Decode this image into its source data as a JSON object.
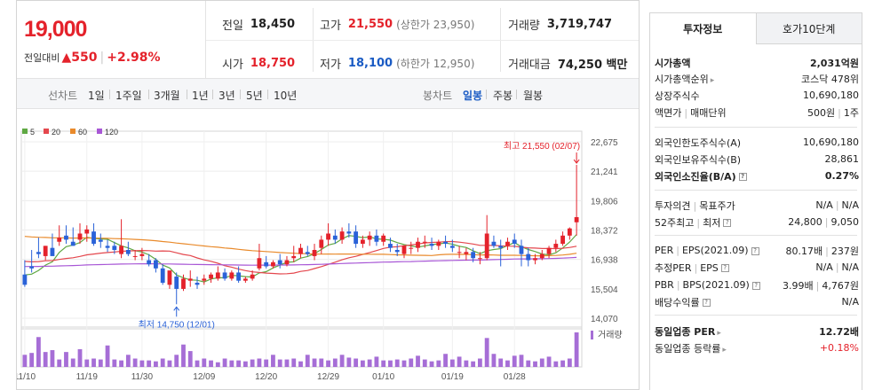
{
  "price": {
    "current": "19,000",
    "change_label": "전일대비",
    "change_arrow": "▲",
    "change": "550",
    "change_pct": "+2.98%"
  },
  "quote": {
    "prev_label": "전일",
    "prev": "18,450",
    "high_label": "고가",
    "high": "21,550",
    "upper_limit": "(상한가 23,950)",
    "volume_label": "거래량",
    "volume": "3,719,747",
    "open_label": "시가",
    "open": "18,750",
    "low_label": "저가",
    "low": "18,100",
    "lower_limit": "(하한가 12,950)",
    "amount_label": "거래대금",
    "amount": "74,250 백만"
  },
  "periods": {
    "line_label": "선차트",
    "items": [
      "1일",
      "1주일",
      "3개월",
      "1년",
      "3년",
      "5년",
      "10년"
    ]
  },
  "candles_tabs": {
    "label": "봉차트",
    "items": [
      "일봉",
      "주봉",
      "월봉"
    ],
    "active": "일봉"
  },
  "chart_data": {
    "type": "candlestick",
    "legend": [
      {
        "name": "5",
        "color": "#5fa843"
      },
      {
        "name": "20",
        "color": "#e4474d"
      },
      {
        "name": "60",
        "color": "#e98a2b"
      },
      {
        "name": "120",
        "color": "#a857d6"
      }
    ],
    "ylim": [
      14070,
      22675
    ],
    "y_ticks": [
      "22,675",
      "21,241",
      "19,806",
      "18,372",
      "16,938",
      "15,504",
      "14,070"
    ],
    "x_labels": [
      "11/10",
      "11/19",
      "11/30",
      "12/09",
      "12/20",
      "12/29",
      "01/10",
      "01/19",
      "01/28"
    ],
    "max_annotation": "최고 21,550 (02/07)",
    "min_annotation": "최저 14,750 (12/01)",
    "volume_label": "거래량",
    "ohlc": [
      [
        16200,
        16900,
        15700,
        15600
      ],
      [
        16600,
        17400,
        16500,
        16300
      ],
      [
        17300,
        18000,
        17200,
        17000
      ],
      [
        17100,
        17600,
        17600,
        16900
      ],
      [
        17500,
        18200,
        17100,
        17300
      ],
      [
        17800,
        18600,
        18000,
        17600
      ],
      [
        18100,
        18600,
        17900,
        17700
      ],
      [
        17800,
        18500,
        17600,
        17600
      ],
      [
        17900,
        18700,
        18200,
        17700
      ],
      [
        18200,
        18600,
        18400,
        17800
      ],
      [
        18300,
        18700,
        17700,
        17600
      ],
      [
        17900,
        18200,
        17800,
        17500
      ],
      [
        17600,
        17900,
        17500,
        17300
      ],
      [
        17600,
        17800,
        17400,
        17200
      ],
      [
        17200,
        18900,
        17600,
        17000
      ],
      [
        17400,
        17800,
        17200,
        17100
      ],
      [
        17100,
        17400,
        17100,
        16900
      ],
      [
        17100,
        17500,
        17200,
        16900
      ],
      [
        16900,
        17200,
        16700,
        16600
      ],
      [
        16900,
        17000,
        16500,
        16300
      ],
      [
        16500,
        16700,
        15800,
        15700
      ],
      [
        15700,
        16200,
        16400,
        15500
      ],
      [
        16100,
        16300,
        15500,
        14750
      ],
      [
        15500,
        16200,
        16000,
        15400
      ],
      [
        15900,
        16400,
        16000,
        15600
      ],
      [
        15800,
        16100,
        15700,
        15500
      ],
      [
        15900,
        16200,
        16000,
        15700
      ],
      [
        16000,
        16300,
        16200,
        15800
      ],
      [
        16000,
        16600,
        16300,
        15900
      ],
      [
        16300,
        16500,
        16000,
        15900
      ],
      [
        16000,
        16400,
        16300,
        15900
      ],
      [
        16300,
        16600,
        15900,
        15800
      ],
      [
        15900,
        16100,
        16000,
        15800
      ],
      [
        16000,
        16400,
        16200,
        15900
      ],
      [
        16500,
        17700,
        17000,
        16400
      ],
      [
        16800,
        17100,
        16600,
        16500
      ],
      [
        16600,
        16900,
        16800,
        16500
      ],
      [
        16900,
        17200,
        16700,
        16500
      ],
      [
        16700,
        17100,
        16900,
        16600
      ],
      [
        17000,
        17600,
        17100,
        16800
      ],
      [
        17200,
        17700,
        17500,
        17000
      ],
      [
        17300,
        17600,
        17200,
        17100
      ],
      [
        17100,
        17700,
        17400,
        16900
      ],
      [
        17500,
        18100,
        17900,
        17200
      ],
      [
        17900,
        18700,
        18200,
        17600
      ],
      [
        18100,
        18400,
        17900,
        17700
      ],
      [
        17900,
        18500,
        18300,
        17700
      ],
      [
        18300,
        18700,
        18200,
        18000
      ],
      [
        18300,
        18600,
        17700,
        17500
      ],
      [
        17700,
        18100,
        17900,
        17500
      ],
      [
        17900,
        18300,
        18100,
        17600
      ],
      [
        18100,
        18400,
        17800,
        17600
      ],
      [
        17800,
        18200,
        18100,
        17600
      ],
      [
        17700,
        18000,
        17500,
        17300
      ],
      [
        17400,
        17700,
        17300,
        17100
      ],
      [
        17200,
        17500,
        17600,
        17000
      ],
      [
        17500,
        17800,
        17500,
        17200
      ],
      [
        17500,
        18000,
        17800,
        17300
      ],
      [
        17800,
        18100,
        17800,
        17500
      ],
      [
        17700,
        18000,
        17600,
        17400
      ],
      [
        17600,
        17900,
        17800,
        17400
      ],
      [
        17800,
        18100,
        17700,
        17500
      ],
      [
        17600,
        17900,
        17500,
        17300
      ],
      [
        17300,
        17600,
        17300,
        17000
      ],
      [
        17200,
        17500,
        17300,
        16900
      ],
      [
        17300,
        17500,
        17000,
        16800
      ],
      [
        17000,
        17300,
        17000,
        16700
      ],
      [
        17000,
        19100,
        18200,
        16900
      ],
      [
        17800,
        18100,
        17600,
        17500
      ],
      [
        17600,
        17900,
        17500,
        16600
      ],
      [
        17600,
        18000,
        17800,
        17400
      ],
      [
        17900,
        18200,
        17700,
        17500
      ],
      [
        17600,
        17900,
        17200,
        16600
      ],
      [
        17200,
        17500,
        16900,
        16600
      ],
      [
        16900,
        17200,
        17000,
        16700
      ],
      [
        17000,
        17400,
        17200,
        16900
      ],
      [
        17200,
        17600,
        17500,
        17000
      ],
      [
        17500,
        17900,
        17700,
        17300
      ],
      [
        17700,
        18300,
        18100,
        17600
      ],
      [
        18100,
        18500,
        18450,
        17900
      ],
      [
        18750,
        21550,
        19000,
        18100
      ]
    ],
    "volume": [
      1.3,
      1.5,
      3.2,
      1.6,
      1.8,
      0.8,
      1.6,
      0.9,
      1.9,
      0.8,
      0.9,
      0.8,
      2.3,
      0.8,
      0.7,
      1.3,
      0.9,
      0.7,
      0.7,
      0.6,
      0.9,
      0.7,
      1.3,
      2.4,
      1.7,
      0.7,
      0.9,
      0.7,
      0.5,
      0.9,
      0.7,
      0.7,
      0.6,
      0.8,
      0.9,
      0.8,
      1.3,
      0.8,
      0.8,
      0.9,
      0.6,
      1.3,
      0.9,
      0.9,
      0.7,
      0.9,
      1.3,
      1.0,
      0.9,
      0.7,
      0.8,
      1.1,
      0.7,
      0.7,
      0.8,
      0.7,
      0.9,
      1.2,
      0.8,
      0.6,
      0.7,
      1.4,
      0.8,
      1.1,
      0.7,
      0.6,
      0.9,
      3.1,
      1.4,
      0.9,
      0.7,
      1.2,
      1.3,
      0.7,
      0.6,
      0.9,
      1.1,
      0.6,
      0.7,
      0.9,
      3.7
    ]
  },
  "info": {
    "tab_active": "투자정보",
    "tab_other": "호가10단계",
    "rows": [
      {
        "k": "시가총액",
        "v": "2,031억원",
        "bold": true
      },
      {
        "k": "시가총액순위",
        "v": "코스닥 478위",
        "arrow": true
      },
      {
        "k": "상장주식수",
        "v": "10,690,180"
      },
      {
        "k": "액면가",
        "k2": "매매단위",
        "v": "500원",
        "v2": "1주"
      },
      {
        "k": "외국인한도주식수(A)",
        "v": "10,690,180"
      },
      {
        "k": "외국인보유주식수(B)",
        "v": "28,861"
      },
      {
        "k": "외국인소진율(B/A)",
        "v": "0.27%",
        "bold": true,
        "q": true
      },
      {
        "k": "투자의견",
        "k2": "목표주가",
        "v": "N/A",
        "v2": "N/A"
      },
      {
        "k": "52주최고",
        "k2": "최저",
        "v": "24,800",
        "v2": "9,050",
        "q": true
      },
      {
        "k": "PER",
        "k2": "EPS(2021.09)",
        "v": "80.17배",
        "v2": "237원",
        "q": true
      },
      {
        "k": "추정PER",
        "k2": "EPS",
        "v": "N/A",
        "v2": "N/A",
        "q": true
      },
      {
        "k": "PBR",
        "k2": "BPS(2021.09)",
        "v": "3.99배",
        "v2": "4,767원",
        "q": true
      },
      {
        "k": "배당수익률",
        "v": "N/A",
        "q": true
      },
      {
        "k": "동일업종 PER",
        "v": "12.72배",
        "bold": true,
        "arrow": true
      },
      {
        "k": "동일업종 등락률",
        "v": "+0.18%",
        "red": true,
        "arrow": true
      }
    ]
  }
}
